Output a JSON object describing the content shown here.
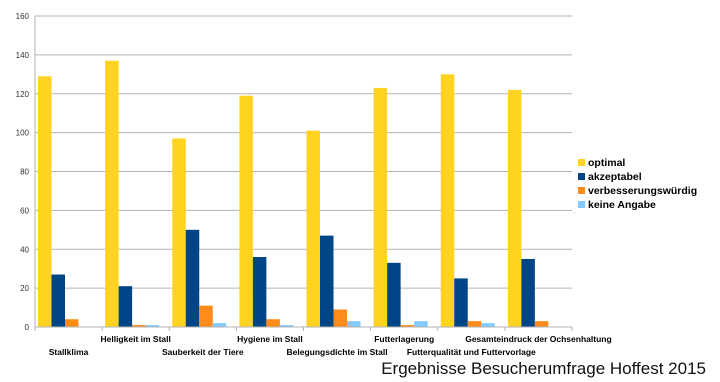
{
  "chart_data": {
    "type": "bar",
    "categories": [
      "Stallklima",
      "Helligkeit im Stall",
      "Sauberkeit der Tiere",
      "Hygiene im Stall",
      "Belegungsdichte im Stall",
      "Futterlagerung",
      "Futterqualität und Futtervorlage",
      "Gesamteindruck der Ochsenhaltung"
    ],
    "series": [
      {
        "name": "optimal",
        "color": "#FFD320",
        "values": [
          129,
          137,
          97,
          119,
          101,
          123,
          130,
          122
        ]
      },
      {
        "name": "akzeptabel",
        "color": "#004586",
        "values": [
          27,
          21,
          50,
          36,
          47,
          33,
          25,
          35
        ]
      },
      {
        "name": "verbesserungswürdig",
        "color": "#FF8C1A",
        "values": [
          4,
          1,
          11,
          4,
          9,
          1,
          3,
          3
        ]
      },
      {
        "name": "keine Angabe",
        "color": "#83CAFF",
        "values": [
          0,
          1,
          2,
          1,
          3,
          3,
          2,
          0
        ]
      }
    ],
    "ylim": [
      0,
      160
    ],
    "yticks": [
      0,
      20,
      40,
      60,
      80,
      100,
      120,
      140,
      160
    ],
    "grid": true,
    "legend": "right",
    "caption": "Ergebnisse Besucherumfrage Hoffest 2015"
  }
}
